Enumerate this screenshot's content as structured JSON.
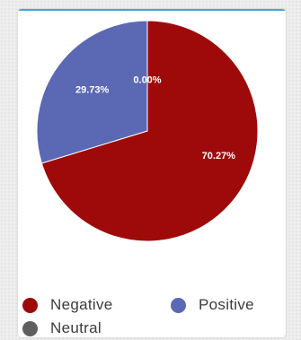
{
  "chart_data": {
    "type": "pie",
    "title": "",
    "series": [
      {
        "name": "Negative",
        "value": 70.27,
        "label": "70.27%",
        "color": "#9e0a0a"
      },
      {
        "name": "Positive",
        "value": 29.73,
        "label": "29.73%",
        "color": "#5b68b4"
      },
      {
        "name": "Neutral",
        "value": 0.0,
        "label": "0.00%",
        "color": "#5f5f5f"
      }
    ],
    "start": "top",
    "direction": "clockwise",
    "legend_position": "bottom"
  },
  "legend": {
    "items": [
      {
        "label": "Negative",
        "color": "#9e0a0a"
      },
      {
        "label": "Positive",
        "color": "#5b68b4"
      },
      {
        "label": "Neutral",
        "color": "#5f5f5f"
      }
    ]
  }
}
